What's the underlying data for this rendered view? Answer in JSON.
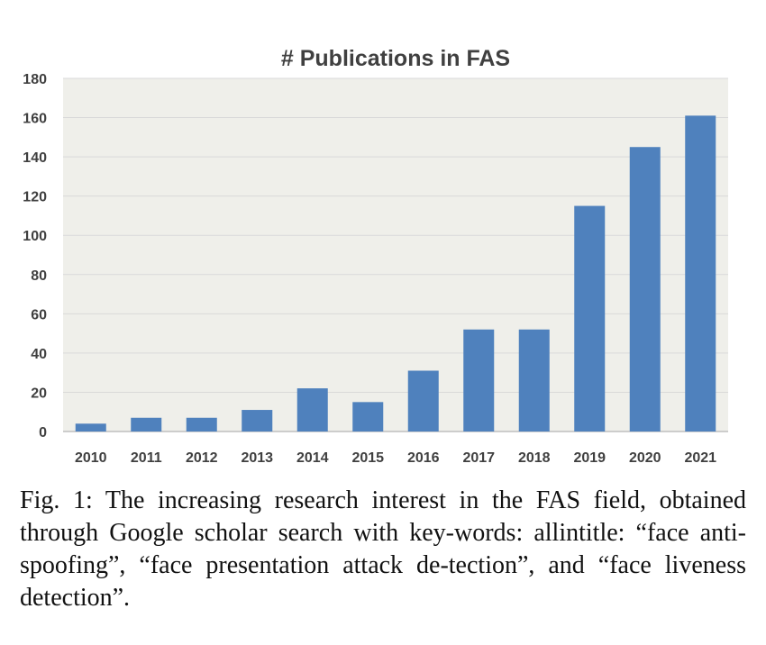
{
  "chart_data": {
    "type": "bar",
    "title": "# Publications in FAS",
    "categories": [
      "2010",
      "2011",
      "2012",
      "2013",
      "2014",
      "2015",
      "2016",
      "2017",
      "2018",
      "2019",
      "2020",
      "2021"
    ],
    "values": [
      4,
      7,
      7,
      11,
      22,
      15,
      31,
      52,
      52,
      115,
      145,
      161
    ],
    "ylim": [
      0,
      180
    ],
    "yticks": [
      0,
      20,
      40,
      60,
      80,
      100,
      120,
      140,
      160,
      180
    ],
    "xlabel": "",
    "ylabel": "",
    "grid": true,
    "legend": "none",
    "colors": {
      "bar": "#4f81bd",
      "plot_bg": "#efefea",
      "grid": "#d9d9d9",
      "text": "#404040"
    }
  },
  "caption": "Fig. 1: The increasing research interest in the FAS field, obtained through Google scholar search with key-words: allintitle: “face anti-spoofing”, “face presentation attack de-tection”, and “face liveness detection”."
}
